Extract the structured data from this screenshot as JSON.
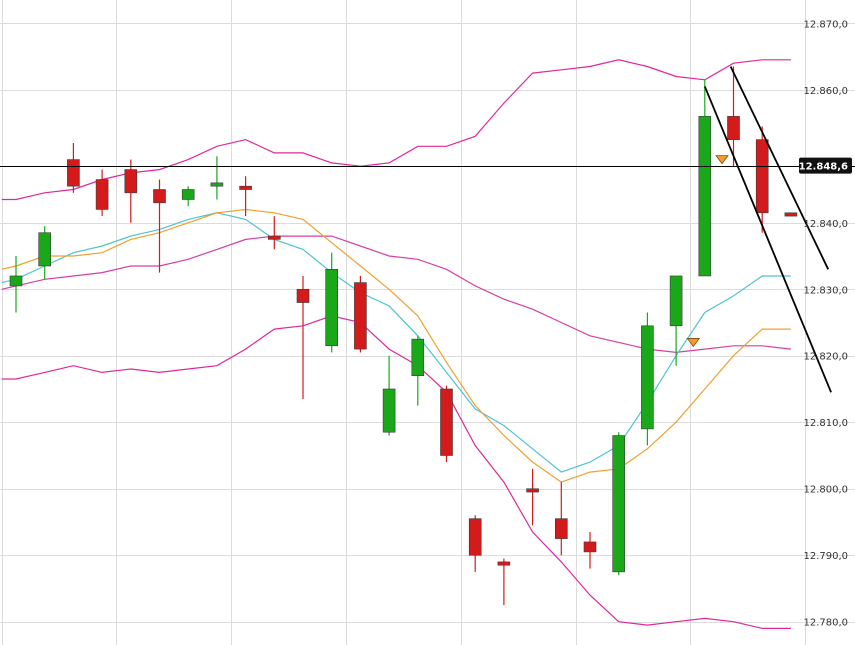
{
  "chart_data": {
    "type": "candlestick",
    "title": "",
    "xlabel": "",
    "ylabel": "",
    "ylim": [
      12776.5,
      12873.5
    ],
    "grid": true,
    "colors": {
      "up": "#1aa81a",
      "down": "#d41b1b",
      "bb_upper_lower": "#e0279b",
      "bb_middle": "#d63fa0",
      "fast_ma": "#4fc3d1",
      "slow_ma": "#f0a030",
      "trend_lines": "#000000",
      "price_line": "#000000",
      "marker": "#f59a2a"
    },
    "y_ticks": [
      {
        "value": 12870,
        "label": "12.870,0"
      },
      {
        "value": 12860,
        "label": "12.860,0"
      },
      {
        "value": 12840,
        "label": "12.840,0"
      },
      {
        "value": 12830,
        "label": "12.830,0"
      },
      {
        "value": 12820,
        "label": "12.820,0"
      },
      {
        "value": 12810,
        "label": "12.810,0"
      },
      {
        "value": 12800,
        "label": "12.800,0"
      },
      {
        "value": 12790,
        "label": "12.790,0"
      },
      {
        "value": 12780,
        "label": "12.780,0"
      }
    ],
    "current_price": {
      "value": 12848.6,
      "label": "12.848,6"
    },
    "candles": [
      {
        "o": 12830.5,
        "h": 12835.0,
        "l": 12826.5,
        "c": 12832.0
      },
      {
        "o": 12833.5,
        "h": 12839.5,
        "l": 12831.5,
        "c": 12838.5
      },
      {
        "o": 12849.5,
        "h": 12852.0,
        "l": 12844.5,
        "c": 12845.5
      },
      {
        "o": 12846.5,
        "h": 12848.0,
        "l": 12841.0,
        "c": 12842.0
      },
      {
        "o": 12848.0,
        "h": 12849.5,
        "l": 12840.0,
        "c": 12844.5
      },
      {
        "o": 12845.0,
        "h": 12846.5,
        "l": 12832.5,
        "c": 12843.0
      },
      {
        "o": 12843.5,
        "h": 12845.5,
        "l": 12842.5,
        "c": 12845.0
      },
      {
        "o": 12845.5,
        "h": 12850.0,
        "l": 12843.5,
        "c": 12846.0
      },
      {
        "o": 12845.5,
        "h": 12847.0,
        "l": 12841.0,
        "c": 12845.0
      },
      {
        "o": 12838.0,
        "h": 12841.0,
        "l": 12836.0,
        "c": 12837.5
      },
      {
        "o": 12830.0,
        "h": 12832.0,
        "l": 12813.5,
        "c": 12828.0
      },
      {
        "o": 12821.5,
        "h": 12835.5,
        "l": 12820.5,
        "c": 12833.0
      },
      {
        "o": 12831.0,
        "h": 12832.0,
        "l": 12820.5,
        "c": 12821.0
      },
      {
        "o": 12808.5,
        "h": 12820.0,
        "l": 12808.0,
        "c": 12815.0
      },
      {
        "o": 12817.0,
        "h": 12823.0,
        "l": 12812.5,
        "c": 12822.5
      },
      {
        "o": 12815.0,
        "h": 12815.5,
        "l": 12804.0,
        "c": 12805.0
      },
      {
        "o": 12795.5,
        "h": 12796.0,
        "l": 12787.5,
        "c": 12790.0
      },
      {
        "o": 12789.0,
        "h": 12789.5,
        "l": 12782.5,
        "c": 12788.5
      },
      {
        "o": 12800.0,
        "h": 12803.0,
        "l": 12794.5,
        "c": 12799.5
      },
      {
        "o": 12795.5,
        "h": 12801.0,
        "l": 12790.0,
        "c": 12792.5
      },
      {
        "o": 12792.0,
        "h": 12793.5,
        "l": 12788.0,
        "c": 12790.5
      },
      {
        "o": 12787.5,
        "h": 12808.5,
        "l": 12787.0,
        "c": 12808.0
      },
      {
        "o": 12809.0,
        "h": 12826.5,
        "l": 12806.5,
        "c": 12824.5
      },
      {
        "o": 12824.5,
        "h": 12832.0,
        "l": 12818.5,
        "c": 12832.0
      },
      {
        "o": 12832.0,
        "h": 12861.5,
        "l": 12832.0,
        "c": 12856.0
      },
      {
        "o": 12856.0,
        "h": 12863.5,
        "l": 12848.5,
        "c": 12852.5
      },
      {
        "o": 12852.5,
        "h": 12854.5,
        "l": 12838.5,
        "c": 12841.5
      },
      {
        "o": 12841.5,
        "h": 12841.5,
        "l": 12841.0,
        "c": 12841.0
      }
    ],
    "series": [
      {
        "key": "bb_upper",
        "style": "bb_upper_lower",
        "x": [
          -0.5,
          0,
          1,
          2,
          3,
          4,
          5,
          6,
          7,
          8,
          9,
          10,
          11,
          12,
          13,
          14,
          15,
          16,
          17,
          18,
          19,
          20,
          21,
          22,
          23,
          24,
          25,
          26,
          27
        ],
        "values": [
          12843.5,
          12843.5,
          12844.5,
          12845.0,
          12846.5,
          12847.5,
          12848.0,
          12849.5,
          12851.5,
          12852.5,
          12850.5,
          12850.5,
          12849.0,
          12848.5,
          12849.0,
          12851.5,
          12851.5,
          12853.0,
          12858.0,
          12862.5,
          12863.0,
          12863.5,
          12864.5,
          12863.5,
          12862.0,
          12861.5,
          12864.0,
          12864.5,
          12864.5
        ]
      },
      {
        "key": "bb_middle",
        "style": "bb_middle",
        "x": [
          -0.5,
          0,
          1,
          2,
          3,
          4,
          5,
          6,
          7,
          8,
          9,
          10,
          11,
          12,
          13,
          14,
          15,
          16,
          17,
          18,
          19,
          20,
          21,
          22,
          23,
          24,
          25,
          26,
          27
        ],
        "values": [
          12830.0,
          12830.5,
          12831.5,
          12832.0,
          12832.5,
          12833.5,
          12833.5,
          12834.5,
          12836.0,
          12837.5,
          12838.0,
          12838.0,
          12838.0,
          12836.5,
          12835.0,
          12834.5,
          12833.0,
          12830.5,
          12828.5,
          12827.0,
          12825.0,
          12823.0,
          12822.0,
          12821.0,
          12820.5,
          12821.0,
          12821.5,
          12821.5,
          12821.0
        ]
      },
      {
        "key": "bb_lower",
        "style": "bb_upper_lower",
        "x": [
          -0.5,
          0,
          1,
          2,
          3,
          4,
          5,
          6,
          7,
          8,
          9,
          10,
          11,
          12,
          13,
          14,
          15,
          16,
          17,
          18,
          19,
          20,
          21,
          22,
          23,
          24,
          25,
          26,
          27
        ],
        "values": [
          12816.5,
          12816.5,
          12817.5,
          12818.5,
          12817.5,
          12818.0,
          12817.5,
          12818.0,
          12818.5,
          12821.0,
          12824.0,
          12824.5,
          12826.0,
          12825.0,
          12821.0,
          12818.5,
          12814.5,
          12806.5,
          12801.0,
          12793.5,
          12789.0,
          12784.0,
          12780.0,
          12779.5,
          12780.0,
          12780.5,
          12780.0,
          12779.0,
          12779.0
        ]
      },
      {
        "key": "fast_ma",
        "style": "fast_ma",
        "x": [
          -0.5,
          0,
          1,
          2,
          3,
          4,
          5,
          6,
          7,
          8,
          9,
          10,
          11,
          12,
          13,
          14,
          15,
          16,
          17,
          18,
          19,
          20,
          21,
          22,
          23,
          24,
          25,
          26,
          27
        ],
        "values": [
          12831.0,
          12831.5,
          12833.5,
          12835.5,
          12836.5,
          12838.0,
          12839.0,
          12840.5,
          12841.5,
          12840.5,
          12837.5,
          12836.0,
          12832.5,
          12829.5,
          12827.5,
          12823.0,
          12817.5,
          12812.0,
          12809.5,
          12806.0,
          12802.5,
          12804.0,
          12806.5,
          12813.0,
          12820.0,
          12826.5,
          12829.0,
          12832.0,
          12832.0
        ]
      },
      {
        "key": "slow_ma",
        "style": "slow_ma",
        "x": [
          -0.5,
          0,
          1,
          2,
          3,
          4,
          5,
          6,
          7,
          8,
          9,
          10,
          11,
          12,
          13,
          14,
          15,
          16,
          17,
          18,
          19,
          20,
          21,
          22,
          23,
          24,
          25,
          26,
          27
        ],
        "values": [
          12833.0,
          12833.5,
          12835.0,
          12835.0,
          12835.5,
          12837.5,
          12838.5,
          12840.0,
          12841.5,
          12842.0,
          12841.5,
          12840.5,
          12837.0,
          12833.5,
          12830.0,
          12826.0,
          12819.0,
          12812.5,
          12808.0,
          12804.0,
          12801.0,
          12802.5,
          12803.0,
          12806.0,
          12810.0,
          12815.0,
          12820.0,
          12824.0,
          12824.0
        ]
      }
    ],
    "trend_lines": [
      {
        "x1": 24,
        "y1": 12860.5,
        "x2": 28.4,
        "y2": 12814.5
      },
      {
        "x1": 24.9,
        "y1": 12863.5,
        "x2": 28.3,
        "y2": 12833.0
      }
    ],
    "markers": [
      {
        "x": 24.6,
        "y": 12849.5
      },
      {
        "x": 23.6,
        "y": 12822.0
      }
    ]
  }
}
